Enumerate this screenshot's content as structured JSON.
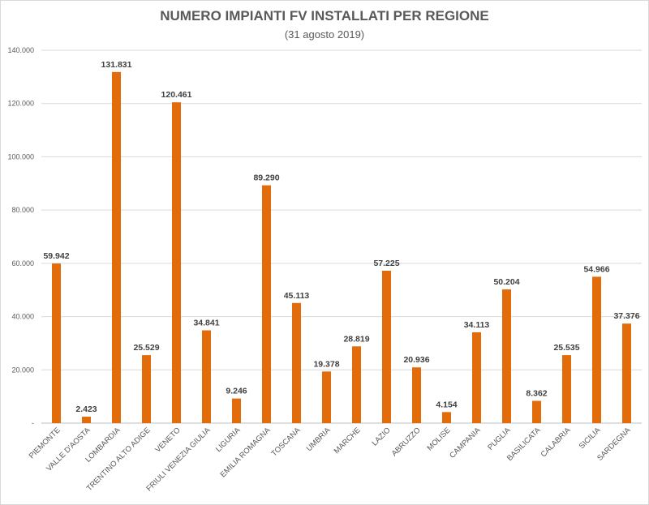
{
  "chart_data": {
    "type": "bar",
    "title": "NUMERO IMPIANTI FV INSTALLATI PER REGIONE",
    "subtitle": "(31 agosto 2019)",
    "xlabel": "",
    "ylabel": "",
    "ylim": [
      0,
      140000
    ],
    "yticks": [
      0,
      20000,
      40000,
      60000,
      80000,
      100000,
      120000,
      140000
    ],
    "ytick_labels": [
      "-",
      "20.000",
      "40.000",
      "60.000",
      "80.000",
      "100.000",
      "120.000",
      "140.000"
    ],
    "grid": true,
    "legend": "none",
    "bar_color": "#e36c0a",
    "categories": [
      "PIEMONTE",
      "VALLE D'AOSTA",
      "LOMBARDIA",
      "TRENTINO ALTO ADIGE",
      "VENETO",
      "FRIULI VENEZIA GIULIA",
      "LIGURIA",
      "EMILIA ROMAGNA",
      "TOSCANA",
      "UMBRIA",
      "MARCHE",
      "LAZIO",
      "ABRUZZO",
      "MOLISE",
      "CAMPANIA",
      "PUGLIA",
      "BASILICATA",
      "CALABRIA",
      "SICILIA",
      "SARDEGNA"
    ],
    "values": [
      59942,
      2423,
      131831,
      25529,
      120461,
      34841,
      9246,
      89290,
      45113,
      19378,
      28819,
      57225,
      20936,
      4154,
      34113,
      50204,
      8362,
      25535,
      54966,
      37376
    ],
    "data_labels": [
      "59.942",
      "2.423",
      "131.831",
      "25.529",
      "120.461",
      "34.841",
      "9.246",
      "89.290",
      "45.113",
      "19.378",
      "28.819",
      "57.225",
      "20.936",
      "4.154",
      "34.113",
      "50.204",
      "8.362",
      "25.535",
      "54.966",
      "37.376"
    ]
  }
}
